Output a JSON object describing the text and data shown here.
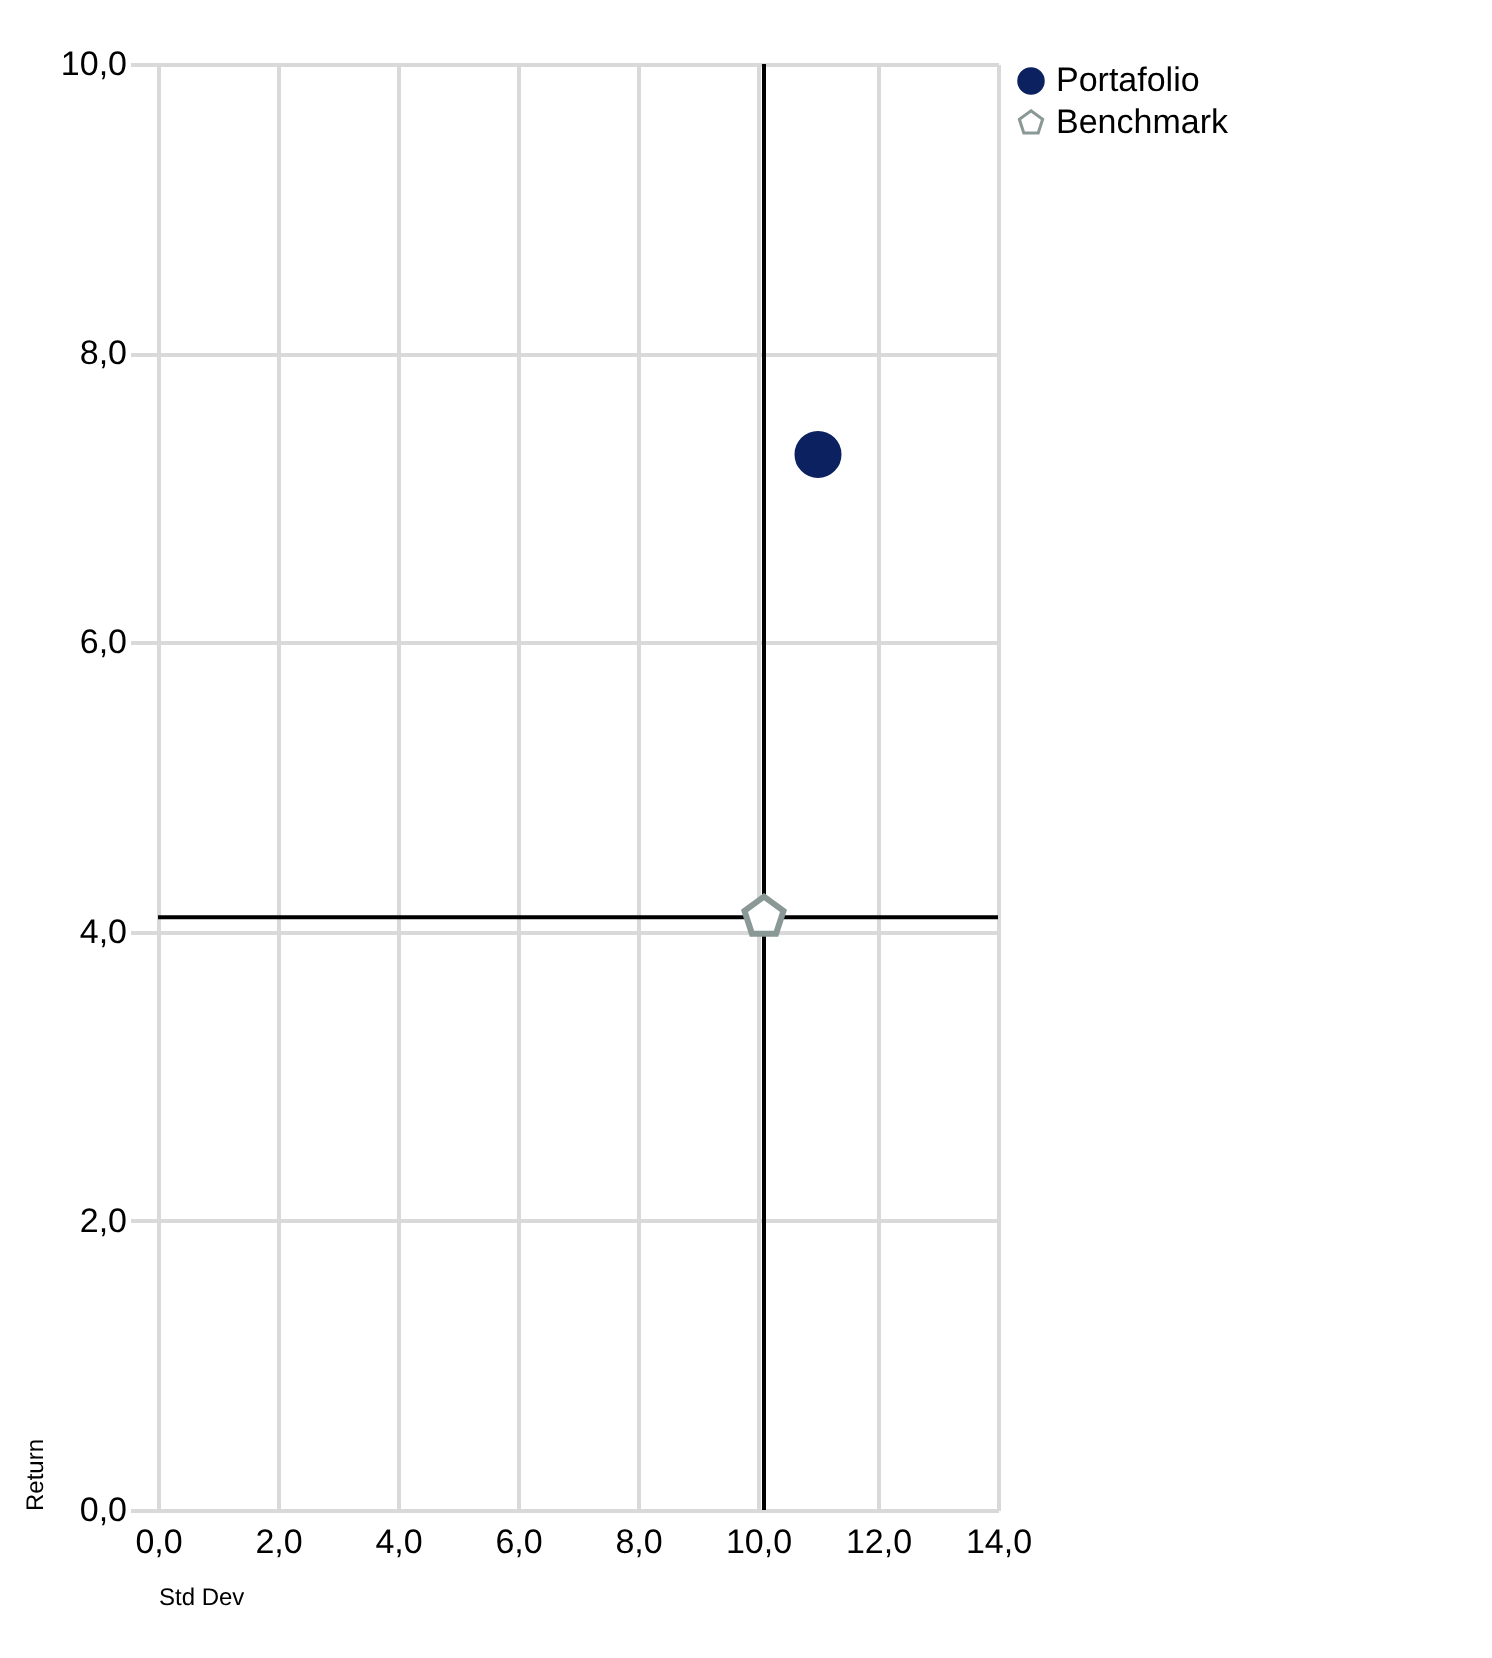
{
  "chart_data": {
    "type": "scatter",
    "xlabel": "Std Dev",
    "ylabel": "Return",
    "series": [
      {
        "name": "Portafolio",
        "color": "#0c2160",
        "x": [
          11.0
        ],
        "values": [
          7.3
        ]
      },
      {
        "name": "Benchmark",
        "color": "#8a9896",
        "x": [
          10.1
        ],
        "values": [
          4.1
        ]
      }
    ],
    "xlim": [
      0,
      14
    ],
    "ylim": [
      0,
      10
    ],
    "xticks": [
      {
        "value": 0,
        "label": "0,0"
      },
      {
        "value": 2,
        "label": "2,0"
      },
      {
        "value": 4,
        "label": "4,0"
      },
      {
        "value": 6,
        "label": "6,0"
      },
      {
        "value": 8,
        "label": "8,0"
      },
      {
        "value": 10,
        "label": "10,0"
      },
      {
        "value": 12,
        "label": "12,0"
      },
      {
        "value": 14,
        "label": "14,0"
      }
    ],
    "yticks": [
      {
        "value": 0,
        "label": "0,0"
      },
      {
        "value": 2,
        "label": "2,0"
      },
      {
        "value": 4,
        "label": "4,0"
      },
      {
        "value": 6,
        "label": "6,0"
      },
      {
        "value": 8,
        "label": "8,0"
      },
      {
        "value": 10,
        "label": "10,0"
      }
    ],
    "ref_lines": [
      {
        "axis": "x",
        "value": 10.1,
        "color": "#000000"
      },
      {
        "axis": "y",
        "value": 4.1,
        "color": "#000000"
      }
    ],
    "grid": true,
    "legend": "top right"
  }
}
